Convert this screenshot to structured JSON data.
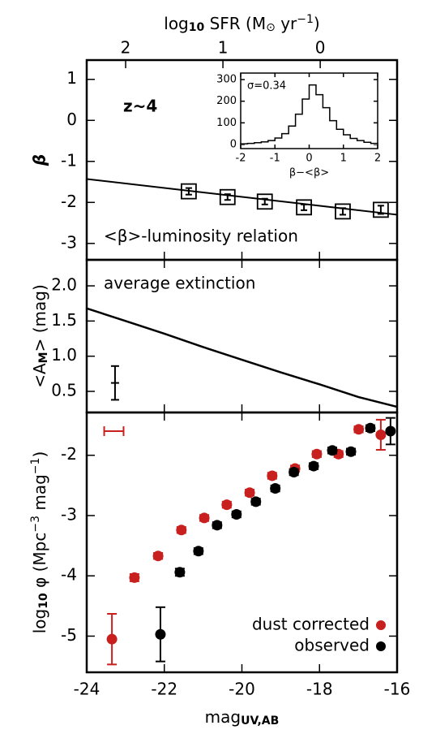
{
  "chart_data": [
    {
      "type": "scatter",
      "marker": "square",
      "annotations": [
        "z~4",
        "<β>-luminosity relation"
      ],
      "ylabel": "β",
      "x2label": [
        {
          "text": "log"
        },
        {
          "sub": "10"
        },
        {
          "text": " SFR (M"
        },
        {
          "sub": "⊙"
        },
        {
          "text": " yr"
        },
        {
          "sup": "−1"
        },
        {
          "text": ")"
        }
      ],
      "x2lim": [
        2.4,
        -0.79
      ],
      "x2ticks": [
        2,
        1,
        0
      ],
      "ylim": [
        -3.4,
        1.47
      ],
      "yticks": [
        -3,
        -2,
        -1,
        0,
        1
      ],
      "x": [
        -21.37,
        -20.37,
        -19.41,
        -18.4,
        -17.4,
        -16.42
      ],
      "series": [
        {
          "color": "#000000",
          "values": [
            -1.73,
            -1.87,
            -1.98,
            -2.12,
            -2.22,
            -2.18
          ],
          "errors": [
            0.08,
            0.07,
            0.07,
            0.07,
            0.08,
            0.1
          ]
        }
      ],
      "fit": {
        "x": [
          -24,
          -16
        ],
        "values": [
          -1.43,
          -2.3
        ]
      }
    },
    {
      "type": "histogram",
      "annotation": "σ=0.34",
      "xlabel": "β−<β>",
      "bins": [
        -2,
        -1.8,
        -1.6,
        -1.4,
        -1.2,
        -1,
        -0.8,
        -0.6,
        -0.4,
        -0.2,
        0,
        0.2,
        0.4,
        0.6,
        0.8,
        1,
        1.2,
        1.4,
        1.6,
        1.8,
        2
      ],
      "counts": [
        3,
        5,
        8,
        12,
        18,
        30,
        50,
        85,
        140,
        210,
        275,
        230,
        170,
        110,
        70,
        45,
        28,
        18,
        10,
        5
      ],
      "xlim": [
        -2,
        2
      ],
      "xticks": [
        -2,
        -1,
        0,
        1,
        2
      ],
      "ylim": [
        -19,
        330
      ],
      "yticks": [
        0,
        100,
        200,
        300
      ]
    },
    {
      "type": "line",
      "annotation": "average extinction",
      "ylabel": [
        {
          "text": "<A"
        },
        {
          "sub": "M"
        },
        {
          "text": "> (mag)"
        }
      ],
      "ylim": [
        0.2,
        2.37
      ],
      "yticks": [
        {
          "value": 0.5,
          "label": "0.5"
        },
        {
          "value": 1,
          "label": "1.0"
        },
        {
          "value": 1.5,
          "label": "1.5"
        },
        {
          "value": 2,
          "label": "2.0"
        }
      ],
      "x": [
        -24,
        -23,
        -22,
        -21,
        -20,
        -19,
        -18,
        -17,
        -16
      ],
      "values": [
        1.68,
        1.5,
        1.32,
        1.13,
        0.95,
        0.77,
        0.6,
        0.42,
        0.28
      ],
      "errorbar": {
        "x": -23.27,
        "value": 0.62,
        "error": 0.24
      }
    },
    {
      "type": "scatter",
      "marker": "circle",
      "legend": "lower right",
      "ylabel": [
        {
          "text": "log"
        },
        {
          "sub": "10"
        },
        {
          "text": " φ (Mpc"
        },
        {
          "sup": "−3"
        },
        {
          "text": " mag"
        },
        {
          "sup": "−1"
        },
        {
          "text": ")"
        }
      ],
      "xlabel": [
        {
          "text": "mag"
        },
        {
          "sub": "UV,AB"
        }
      ],
      "xlim": [
        -24,
        -16
      ],
      "xticks": [
        -24,
        -22,
        -20,
        -18,
        -16
      ],
      "ylim": [
        -5.6,
        -1.29
      ],
      "yticks": [
        -5,
        -4,
        -3,
        -2
      ],
      "series": [
        {
          "name": "dust corrected",
          "color": "#c8201e",
          "x": [
            -23.35,
            -22.77,
            -22.16,
            -21.56,
            -20.97,
            -20.39,
            -19.8,
            -19.22,
            -18.63,
            -18.07,
            -17.51,
            -16.99,
            -16.42
          ],
          "values": [
            -5.05,
            -4.03,
            -3.67,
            -3.24,
            -3.04,
            -2.82,
            -2.62,
            -2.34,
            -2.22,
            -1.98,
            -1.98,
            -1.57,
            -1.66
          ],
          "errors": [
            0.42,
            0.06,
            0.05,
            0.05,
            0.05,
            0.05,
            0.05,
            0.05,
            0.05,
            0.05,
            0.05,
            0.05,
            0.25
          ]
        },
        {
          "name": "observed",
          "color": "#000000",
          "x": [
            -22.1,
            -21.6,
            -21.12,
            -20.64,
            -20.14,
            -19.64,
            -19.14,
            -18.66,
            -18.15,
            -17.67,
            -17.19,
            -16.69,
            -16.17
          ],
          "values": [
            -4.97,
            -3.94,
            -3.59,
            -3.16,
            -2.98,
            -2.77,
            -2.55,
            -2.28,
            -2.18,
            -1.92,
            -1.94,
            -1.55,
            -1.6
          ],
          "errors": [
            0.45,
            0.06,
            0.05,
            0.05,
            0.05,
            0.05,
            0.05,
            0.05,
            0.05,
            0.05,
            0.05,
            0.05,
            0.22
          ]
        }
      ],
      "xerrbar": {
        "x": -23.3,
        "xerror": 0.25,
        "value": -1.6,
        "color": "#c8201e"
      }
    }
  ]
}
